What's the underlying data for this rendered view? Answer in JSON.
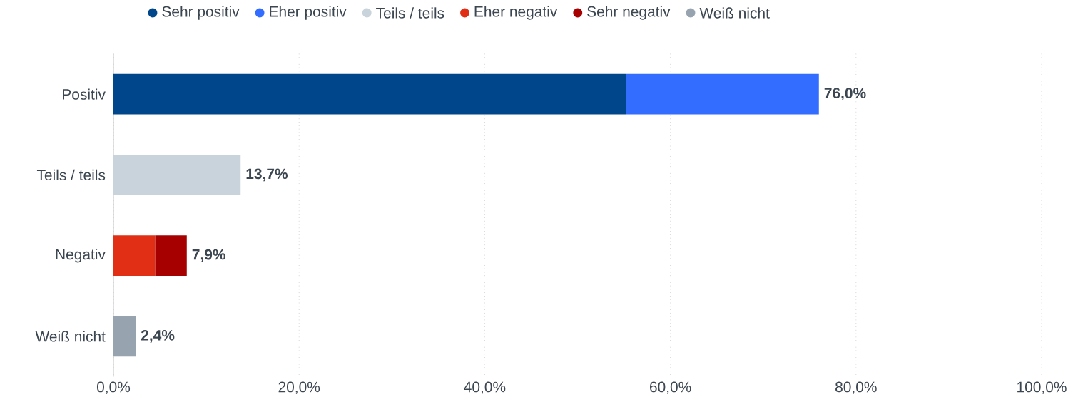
{
  "chart_data": {
    "type": "bar",
    "orientation": "horizontal",
    "stacked": true,
    "categories": [
      "Positiv",
      "Teils / teils",
      "Negativ",
      "Weiß nicht"
    ],
    "series": [
      {
        "name": "Sehr positiv",
        "color": "#00468b",
        "values": [
          55.2,
          null,
          null,
          null
        ]
      },
      {
        "name": "Eher positiv",
        "color": "#336dff",
        "values": [
          20.8,
          null,
          null,
          null
        ]
      },
      {
        "name": "Teils / teils",
        "color": "#c8d3dc",
        "values": [
          null,
          13.7,
          null,
          null
        ]
      },
      {
        "name": "Eher negativ",
        "color": "#e12f15",
        "values": [
          null,
          null,
          4.5,
          null
        ]
      },
      {
        "name": "Sehr negativ",
        "color": "#a60000",
        "values": [
          null,
          null,
          3.4,
          null
        ]
      },
      {
        "name": "Weiß nicht",
        "color": "#97a4b0",
        "values": [
          null,
          null,
          null,
          2.4
        ]
      }
    ],
    "xlim": [
      0,
      100
    ],
    "xticks": [
      {
        "value": 0,
        "label": "0,0%"
      },
      {
        "value": 20,
        "label": "20,0%"
      },
      {
        "value": 40,
        "label": "40,0%"
      },
      {
        "value": 60,
        "label": "60,0%"
      },
      {
        "value": 80,
        "label": "80,0%"
      },
      {
        "value": 100,
        "label": "100,0%"
      }
    ],
    "grid": "x",
    "legend": "top",
    "totals": [
      "76,0%",
      "13,7%",
      "7,9%",
      "2,4%"
    ]
  }
}
